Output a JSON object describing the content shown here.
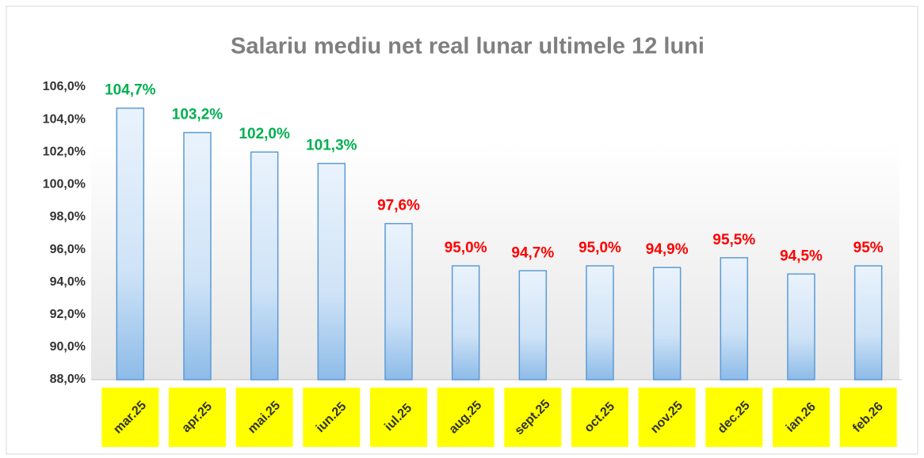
{
  "chart_data": {
    "type": "bar",
    "title": "Salariu mediu net real lunar ultimele 12 luni",
    "categories": [
      "mar.25",
      "apr.25",
      "mai.25",
      "iun.25",
      "iul.25",
      "aug.25",
      "sept.25",
      "oct.25",
      "nov.25",
      "dec.25",
      "ian.26",
      "feb.26"
    ],
    "values": [
      104.7,
      103.2,
      102.0,
      101.3,
      97.6,
      95.0,
      94.7,
      95.0,
      94.9,
      95.5,
      94.5,
      95
    ],
    "value_labels": [
      "104,7%",
      "103,2%",
      "102,0%",
      "101,3%",
      "97,6%",
      "95,0%",
      "94,7%",
      "95,0%",
      "94,9%",
      "95,5%",
      "94,5%",
      "95%"
    ],
    "value_label_colors": [
      "#00b050",
      "#00b050",
      "#00b050",
      "#00b050",
      "#ff0000",
      "#ff0000",
      "#ff0000",
      "#ff0000",
      "#ff0000",
      "#ff0000",
      "#ff0000",
      "#ff0000"
    ],
    "color": "#5b9bd5",
    "category_label_background": "#ffff00",
    "ylim": [
      88,
      106
    ],
    "yticks": [
      {
        "value": 88,
        "label": "88,0%"
      },
      {
        "value": 90,
        "label": "90,0%"
      },
      {
        "value": 92,
        "label": "92,0%"
      },
      {
        "value": 94,
        "label": "94,0%"
      },
      {
        "value": 96,
        "label": "96,0%"
      },
      {
        "value": 98,
        "label": "98,0%"
      },
      {
        "value": 100,
        "label": "100,0%"
      },
      {
        "value": 102,
        "label": "102,0%"
      },
      {
        "value": 104,
        "label": "104,0%"
      },
      {
        "value": 106,
        "label": "106,0%"
      }
    ],
    "grid": false
  }
}
